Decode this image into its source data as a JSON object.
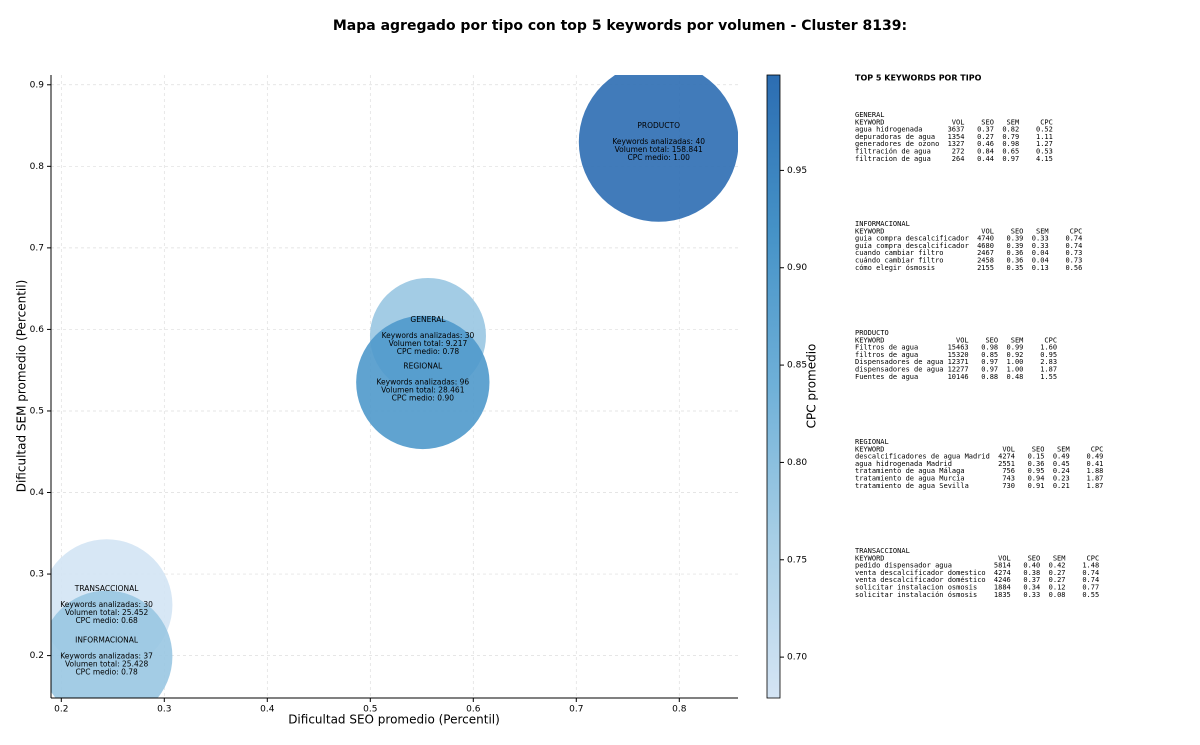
{
  "chart_data": {
    "type": "bubble",
    "title": "Mapa agregado por tipo con top 5 keywords por volumen - Cluster 8139:",
    "x_label": "Dificultad SEO promedio (Percentil)",
    "y_label": "Dificultad SEM promedio (Percentil)",
    "xlim": [
      0.19,
      0.857
    ],
    "xticks": [
      0.2,
      0.3,
      0.4,
      0.5,
      0.6,
      0.7,
      0.8
    ],
    "ylim": [
      0.148,
      0.912
    ],
    "yticks": [
      0.2,
      0.3,
      0.4,
      0.5,
      0.6,
      0.7,
      0.8,
      0.9
    ],
    "grid": true,
    "points": [
      {
        "name": "GENERAL",
        "x": 0.556,
        "y": 0.592,
        "size": 9217,
        "cpc": 0.78,
        "labels": [
          "Keywords analizadas: 30",
          "Volumen total: 9.217",
          "CPC medio: 0.78"
        ]
      },
      {
        "name": "PRODUCTO",
        "x": 0.78,
        "y": 0.83,
        "size": 158841,
        "cpc": 1.0,
        "labels": [
          "Keywords analizadas: 40",
          "Volumen total: 158.841",
          "CPC medio: 1.00"
        ]
      },
      {
        "name": "REGIONAL",
        "x": 0.551,
        "y": 0.535,
        "size": 28461,
        "cpc": 0.9,
        "labels": [
          "Keywords analizadas: 96",
          "Volumen total: 28.461",
          "CPC medio: 0.90"
        ]
      },
      {
        "name": "TRANSACCIONAL",
        "x": 0.244,
        "y": 0.262,
        "size": 25452,
        "cpc": 0.68,
        "labels": [
          "Keywords analizadas: 30",
          "Volumen total: 25.452",
          "CPC medio: 0.68"
        ]
      },
      {
        "name": "INFORMACIONAL",
        "x": 0.244,
        "y": 0.199,
        "size": 25428,
        "cpc": 0.78,
        "labels": [
          "Keywords analizadas: 37",
          "Volumen total: 25.428",
          "CPC medio: 0.78"
        ]
      }
    ],
    "colorbar": {
      "label": "CPC promedio",
      "lim": [
        0.679,
        0.999
      ],
      "ticks": [
        {
          "value": 0.7,
          "label": "0.70"
        },
        {
          "value": 0.75,
          "label": "0.75"
        },
        {
          "value": 0.8,
          "label": "0.80"
        },
        {
          "value": 0.85,
          "label": "0.85"
        },
        {
          "value": 0.9,
          "label": "0.90"
        },
        {
          "value": 0.95,
          "label": "0.95"
        }
      ]
    },
    "side_panel": {
      "title": "TOP 5 KEYWORDS POR TIPO",
      "header": [
        "KEYWORD",
        "VOL",
        "SEO",
        "SEM",
        "CPC"
      ],
      "groups": [
        {
          "name": "GENERAL",
          "rows": [
            [
              "agua hidrogenada",
              "3637",
              "0.37",
              "0.82",
              "0.52"
            ],
            [
              "depuradoras de agua",
              "1354",
              "0.27",
              "0.79",
              "1.11"
            ],
            [
              "generadores de ozono",
              "1327",
              "0.46",
              "0.98",
              "1.27"
            ],
            [
              "filtración de agua",
              "272",
              "0.84",
              "0.65",
              "0.53"
            ],
            [
              "filtracion de agua",
              "264",
              "0.44",
              "0.97",
              "4.15"
            ]
          ]
        },
        {
          "name": "INFORMACIONAL",
          "rows": [
            [
              "guia compra descalcificador",
              "4740",
              "0.39",
              "0.33",
              "0.74"
            ],
            [
              "guía compra descalcificador",
              "4680",
              "0.39",
              "0.33",
              "0.74"
            ],
            [
              "cuando cambiar filtro",
              "2467",
              "0.36",
              "0.04",
              "0.73"
            ],
            [
              "cuándo cambiar filtro",
              "2458",
              "0.36",
              "0.04",
              "0.73"
            ],
            [
              "cómo elegir ósmosis",
              "2155",
              "0.35",
              "0.13",
              "0.56"
            ]
          ]
        },
        {
          "name": "PRODUCTO",
          "rows": [
            [
              "Filtros de agua",
              "15463",
              "0.98",
              "0.99",
              "1.60"
            ],
            [
              "filtros de agua",
              "15320",
              "0.85",
              "0.92",
              "0.95"
            ],
            [
              "Dispensadores de agua",
              "12371",
              "0.97",
              "1.00",
              "2.83"
            ],
            [
              "dispensadores de agua",
              "12277",
              "0.97",
              "1.00",
              "1.87"
            ],
            [
              "Fuentes de agua",
              "10146",
              "0.88",
              "0.48",
              "1.55"
            ]
          ]
        },
        {
          "name": "REGIONAL",
          "rows": [
            [
              "descalcificadores de agua Madrid",
              "4274",
              "0.15",
              "0.49",
              "0.49"
            ],
            [
              "agua hidrogenada Madrid",
              "2551",
              "0.36",
              "0.45",
              "0.41"
            ],
            [
              "tratamiento de agua Málaga",
              "756",
              "0.95",
              "0.24",
              "1.88"
            ],
            [
              "tratamiento de agua Murcia",
              "743",
              "0.94",
              "0.23",
              "1.87"
            ],
            [
              "tratamiento de agua Sevilla",
              "730",
              "0.91",
              "0.21",
              "1.87"
            ]
          ]
        },
        {
          "name": "TRANSACCIONAL",
          "rows": [
            [
              "pedido dispensador agua",
              "5814",
              "0.40",
              "0.42",
              "1.48"
            ],
            [
              "venta descalcificador domestico",
              "4274",
              "0.38",
              "0.27",
              "0.74"
            ],
            [
              "venta descalcificador doméstico",
              "4246",
              "0.37",
              "0.27",
              "0.74"
            ],
            [
              "solicitar instalacion osmosis",
              "1884",
              "0.34",
              "0.12",
              "0.77"
            ],
            [
              "solicitar instalación ósmosis",
              "1835",
              "0.33",
              "0.08",
              "0.55"
            ]
          ]
        }
      ]
    }
  }
}
